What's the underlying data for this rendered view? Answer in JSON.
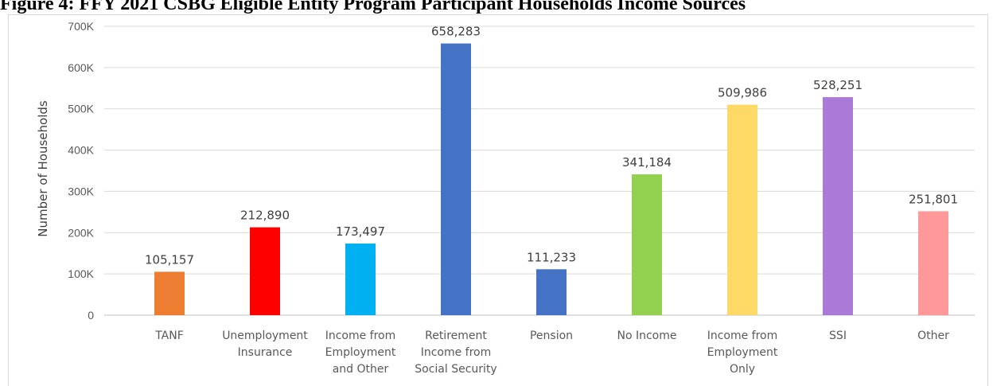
{
  "chart_data": {
    "type": "bar",
    "title": "Figure 4: FFY 2021 CSBG Eligible Entity Program Participant Households Income Sources",
    "xlabel": "",
    "ylabel": "Number of Households",
    "ylim": [
      0,
      700000
    ],
    "yticks": [
      0,
      100000,
      200000,
      300000,
      400000,
      500000,
      600000,
      700000
    ],
    "ytick_labels": [
      "0",
      "100K",
      "200K",
      "300K",
      "400K",
      "500K",
      "600K",
      "700K"
    ],
    "grid": true,
    "categories": [
      [
        "TANF"
      ],
      [
        "Unemployment",
        "Insurance"
      ],
      [
        "Income from",
        "Employment",
        "and Other"
      ],
      [
        "Retirement",
        "Income from",
        "Social Security"
      ],
      [
        "Pension"
      ],
      [
        "No Income"
      ],
      [
        "Income from",
        "Employment",
        "Only"
      ],
      [
        "SSI"
      ],
      [
        "Other"
      ]
    ],
    "values": [
      105157,
      212890,
      173497,
      658283,
      111233,
      341184,
      509986,
      528251,
      251801
    ],
    "data_labels": [
      "105,157",
      "212,890",
      "173,497",
      "658,283",
      "111,233",
      "341,184",
      "509,986",
      "528,251",
      "251,801"
    ],
    "colors": [
      "#ED7D31",
      "#FF0000",
      "#00B0F0",
      "#4472C4",
      "#4472C4",
      "#92D050",
      "#FFD966",
      "#A97BD6",
      "#FF9999"
    ]
  }
}
